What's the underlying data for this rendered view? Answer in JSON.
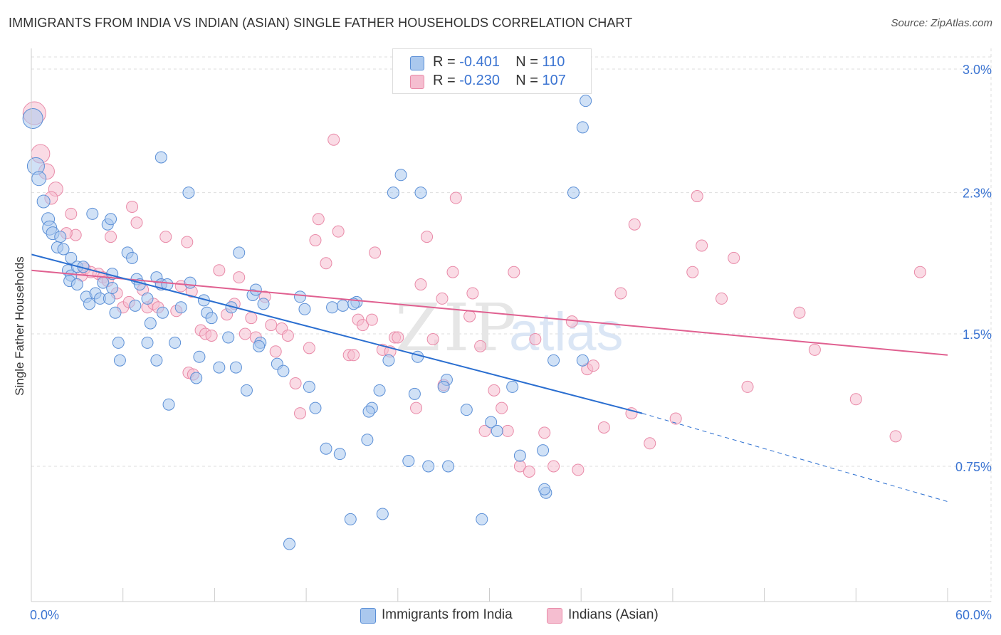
{
  "title": "IMMIGRANTS FROM INDIA VS INDIAN (ASIAN) SINGLE FATHER HOUSEHOLDS CORRELATION CHART",
  "source": "Source: ZipAtlas.com",
  "watermark": {
    "zip": "ZIP",
    "atlas": "atlas"
  },
  "colors": {
    "blue_fill": "#aac8ee",
    "blue_stroke": "#5b8fd6",
    "blue_line": "#2a6ed0",
    "pink_fill": "#f5bed0",
    "pink_stroke": "#e98aa8",
    "pink_line": "#e06090",
    "axis_text": "#3b74d2",
    "grid": "#dddddd"
  },
  "correlation": {
    "rows": [
      {
        "r_label": "R =",
        "r_value": "-0.401",
        "n_label": "N =",
        "n_value": "110",
        "color": "#aac8ee",
        "stroke": "#5b8fd6"
      },
      {
        "r_label": "R =",
        "r_value": "-0.230",
        "n_label": "N =",
        "n_value": "107",
        "color": "#f5bed0",
        "stroke": "#e98aa8"
      }
    ]
  },
  "legend": {
    "series1": "Immigrants from India",
    "series2": "Indians (Asian)"
  },
  "chart_data": {
    "type": "scatter",
    "title": "IMMIGRANTS FROM INDIA VS INDIAN (ASIAN) SINGLE FATHER HOUSEHOLDS CORRELATION CHART",
    "xlabel": "",
    "ylabel": "Single Father Households",
    "x_unit": "%",
    "xlim": [
      0,
      60
    ],
    "ylim": [
      0,
      3.1
    ],
    "x_tick_labels": [
      "0.0%",
      "60.0%"
    ],
    "y_ticks": [
      0.75,
      1.5,
      2.3,
      3.0
    ],
    "y_tick_labels": [
      "0.75%",
      "1.5%",
      "2.3%",
      "3.0%"
    ],
    "grid": true,
    "legend_position": "bottom-center",
    "series": [
      {
        "name": "Immigrants from India",
        "color": "#aac8ee",
        "regression": {
          "x0": 0,
          "y0": 1.95,
          "x1": 40,
          "y1": 1.05,
          "dashed_to_x": 60,
          "dashed_to_y": 0.55
        },
        "points": [
          [
            0.1,
            2.72,
            14
          ],
          [
            0.3,
            2.45,
            12
          ],
          [
            0.5,
            2.38,
            10
          ],
          [
            0.8,
            2.25,
            9
          ],
          [
            1.1,
            2.15,
            9
          ],
          [
            1.2,
            2.1,
            10
          ],
          [
            1.4,
            2.07,
            9
          ],
          [
            1.9,
            2.05,
            8
          ],
          [
            1.7,
            1.99,
            8
          ],
          [
            2.1,
            1.98,
            8
          ],
          [
            2.6,
            1.93,
            8
          ],
          [
            2.4,
            1.86,
            8
          ],
          [
            2.6,
            1.83,
            8
          ],
          [
            3.0,
            1.88,
            8
          ],
          [
            3.4,
            1.88,
            8
          ],
          [
            2.5,
            1.8,
            8
          ],
          [
            3.6,
            1.71,
            8
          ],
          [
            3.8,
            1.67,
            8
          ],
          [
            4.2,
            1.73,
            8
          ],
          [
            4.5,
            1.7,
            8
          ],
          [
            4.7,
            1.79,
            8
          ],
          [
            5.1,
            1.7,
            8
          ],
          [
            5.3,
            1.76,
            8
          ],
          [
            5.5,
            1.62,
            8
          ],
          [
            4.0,
            2.18,
            8
          ],
          [
            5.0,
            2.12,
            8
          ],
          [
            5.2,
            2.15,
            8
          ],
          [
            6.3,
            1.96,
            8
          ],
          [
            6.6,
            1.93,
            8
          ],
          [
            6.9,
            1.81,
            8
          ],
          [
            7.1,
            1.78,
            8
          ],
          [
            6.8,
            1.66,
            8
          ],
          [
            7.6,
            1.7,
            8
          ],
          [
            8.2,
            1.82,
            8
          ],
          [
            7.8,
            1.56,
            8
          ],
          [
            8.5,
            1.78,
            8
          ],
          [
            8.6,
            1.62,
            8
          ],
          [
            8.9,
            1.78,
            8
          ],
          [
            9.8,
            1.65,
            8
          ],
          [
            10.4,
            1.79,
            8
          ],
          [
            5.7,
            1.45,
            8
          ],
          [
            7.6,
            1.45,
            8
          ],
          [
            5.8,
            1.35,
            8
          ],
          [
            8.2,
            1.35,
            8
          ],
          [
            9.4,
            1.45,
            8
          ],
          [
            11.0,
            1.37,
            8
          ],
          [
            10.8,
            1.25,
            8
          ],
          [
            11.3,
            1.69,
            8
          ],
          [
            11.5,
            1.62,
            8
          ],
          [
            11.8,
            1.59,
            8
          ],
          [
            12.3,
            1.31,
            8
          ],
          [
            13.4,
            1.31,
            8
          ],
          [
            13.1,
            1.65,
            8
          ],
          [
            13.6,
            1.96,
            8
          ],
          [
            14.1,
            1.18,
            8
          ],
          [
            14.5,
            1.72,
            8
          ],
          [
            14.7,
            1.75,
            8
          ],
          [
            15.2,
            1.67,
            8
          ],
          [
            15.0,
            1.45,
            8
          ],
          [
            14.9,
            1.43,
            8
          ],
          [
            16.1,
            1.33,
            8
          ],
          [
            16.5,
            1.29,
            8
          ],
          [
            17.6,
            1.71,
            8
          ],
          [
            17.9,
            1.64,
            8
          ],
          [
            18.2,
            1.2,
            8
          ],
          [
            18.6,
            1.08,
            8
          ],
          [
            19.3,
            0.85,
            8
          ],
          [
            19.7,
            1.65,
            8
          ],
          [
            20.2,
            0.82,
            8
          ],
          [
            20.4,
            1.66,
            8
          ],
          [
            21.3,
            1.68,
            8
          ],
          [
            21.1,
            1.67,
            8
          ],
          [
            22.3,
            1.08,
            8
          ],
          [
            22.1,
            1.06,
            8
          ],
          [
            22.8,
            1.18,
            8
          ],
          [
            23.0,
            0.48,
            8
          ],
          [
            23.7,
            2.3,
            8
          ],
          [
            23.4,
            1.35,
            8
          ],
          [
            24.2,
            2.4,
            8
          ],
          [
            25.3,
            1.37,
            8
          ],
          [
            25.1,
            1.16,
            8
          ],
          [
            25.5,
            2.3,
            8
          ],
          [
            27.2,
            1.24,
            8
          ],
          [
            27.0,
            1.2,
            8
          ],
          [
            28.5,
            1.07,
            8
          ],
          [
            30.1,
            1.0,
            8
          ],
          [
            30.5,
            0.95,
            8
          ],
          [
            31.5,
            1.2,
            8
          ],
          [
            32.0,
            0.81,
            8
          ],
          [
            33.5,
            0.84,
            8
          ],
          [
            34.2,
            1.35,
            8
          ],
          [
            36.1,
            1.35,
            8
          ],
          [
            36.1,
            2.67,
            8
          ],
          [
            36.3,
            2.82,
            8
          ],
          [
            33.7,
            0.6,
            8
          ],
          [
            33.6,
            0.62,
            8
          ],
          [
            35.5,
            2.3,
            8
          ],
          [
            26.0,
            0.75,
            8
          ],
          [
            27.3,
            0.75,
            8
          ],
          [
            24.7,
            0.78,
            8
          ],
          [
            22.0,
            0.9,
            8
          ],
          [
            9.0,
            1.1,
            8
          ],
          [
            12.9,
            1.48,
            8
          ],
          [
            10.3,
            2.3,
            8
          ],
          [
            8.5,
            2.5,
            8
          ],
          [
            5.3,
            1.84,
            8
          ],
          [
            3.0,
            1.78,
            8
          ],
          [
            16.9,
            0.31,
            8
          ],
          [
            29.5,
            0.45,
            8
          ],
          [
            20.9,
            0.45,
            8
          ]
        ]
      },
      {
        "name": "Indians (Asian)",
        "color": "#f5bed0",
        "regression": {
          "x0": 0,
          "y0": 1.86,
          "x1": 60,
          "y1": 1.38
        },
        "points": [
          [
            0.2,
            2.75,
            16
          ],
          [
            0.6,
            2.52,
            13
          ],
          [
            1.0,
            2.42,
            11
          ],
          [
            1.6,
            2.32,
            10
          ],
          [
            1.3,
            2.27,
            9
          ],
          [
            2.6,
            2.18,
            8
          ],
          [
            2.9,
            2.06,
            8
          ],
          [
            2.3,
            2.07,
            8
          ],
          [
            3.3,
            1.83,
            8
          ],
          [
            3.5,
            1.87,
            8
          ],
          [
            3.9,
            1.85,
            8
          ],
          [
            4.4,
            1.84,
            8
          ],
          [
            4.7,
            1.82,
            8
          ],
          [
            5.0,
            1.8,
            8
          ],
          [
            5.2,
            2.05,
            8
          ],
          [
            5.6,
            1.73,
            8
          ],
          [
            6.0,
            1.65,
            8
          ],
          [
            6.4,
            1.68,
            8
          ],
          [
            6.6,
            2.22,
            8
          ],
          [
            6.9,
            2.13,
            8
          ],
          [
            7.3,
            1.75,
            8
          ],
          [
            7.6,
            1.65,
            8
          ],
          [
            8.0,
            1.67,
            8
          ],
          [
            8.3,
            1.65,
            8
          ],
          [
            8.5,
            1.78,
            8
          ],
          [
            8.8,
            2.05,
            8
          ],
          [
            9.5,
            1.63,
            8
          ],
          [
            9.8,
            1.77,
            8
          ],
          [
            10.2,
            2.02,
            8
          ],
          [
            10.5,
            1.74,
            8
          ],
          [
            10.3,
            1.28,
            8
          ],
          [
            10.6,
            1.27,
            8
          ],
          [
            11.1,
            1.52,
            8
          ],
          [
            11.4,
            1.5,
            8
          ],
          [
            11.8,
            1.49,
            8
          ],
          [
            12.3,
            1.86,
            8
          ],
          [
            12.8,
            1.61,
            8
          ],
          [
            13.3,
            1.67,
            8
          ],
          [
            13.6,
            1.82,
            8
          ],
          [
            14.0,
            1.5,
            8
          ],
          [
            14.4,
            1.59,
            8
          ],
          [
            14.7,
            1.48,
            8
          ],
          [
            15.3,
            1.71,
            8
          ],
          [
            15.7,
            1.55,
            8
          ],
          [
            16.0,
            1.4,
            8
          ],
          [
            16.4,
            1.53,
            8
          ],
          [
            16.8,
            1.49,
            8
          ],
          [
            17.3,
            1.22,
            8
          ],
          [
            17.6,
            1.05,
            8
          ],
          [
            18.2,
            1.42,
            8
          ],
          [
            18.6,
            2.03,
            8
          ],
          [
            18.8,
            2.15,
            8
          ],
          [
            19.3,
            1.9,
            8
          ],
          [
            19.8,
            2.6,
            8
          ],
          [
            20.1,
            2.08,
            8
          ],
          [
            20.8,
            1.38,
            8
          ],
          [
            21.1,
            1.38,
            8
          ],
          [
            21.4,
            1.58,
            8
          ],
          [
            21.7,
            1.55,
            8
          ],
          [
            22.3,
            1.58,
            8
          ],
          [
            22.5,
            1.96,
            8
          ],
          [
            23.0,
            1.41,
            8
          ],
          [
            23.5,
            1.4,
            8
          ],
          [
            23.8,
            1.48,
            8
          ],
          [
            24.0,
            1.48,
            8
          ],
          [
            25.2,
            1.08,
            8
          ],
          [
            25.5,
            1.78,
            8
          ],
          [
            25.9,
            2.05,
            8
          ],
          [
            26.3,
            1.47,
            8
          ],
          [
            26.9,
            1.7,
            8
          ],
          [
            27.0,
            1.21,
            8
          ],
          [
            27.6,
            1.85,
            8
          ],
          [
            27.8,
            2.27,
            8
          ],
          [
            28.7,
            1.6,
            8
          ],
          [
            28.9,
            1.73,
            8
          ],
          [
            29.4,
            1.43,
            8
          ],
          [
            29.7,
            0.95,
            8
          ],
          [
            30.3,
            1.18,
            8
          ],
          [
            30.8,
            1.08,
            8
          ],
          [
            31.2,
            0.95,
            8
          ],
          [
            31.6,
            1.85,
            8
          ],
          [
            32.0,
            0.75,
            8
          ],
          [
            32.6,
            0.72,
            8
          ],
          [
            33.0,
            1.47,
            8
          ],
          [
            33.6,
            0.94,
            8
          ],
          [
            34.2,
            0.75,
            8
          ],
          [
            35.4,
            1.57,
            8
          ],
          [
            35.8,
            0.73,
            8
          ],
          [
            36.4,
            1.3,
            8
          ],
          [
            36.8,
            1.32,
            8
          ],
          [
            37.5,
            0.97,
            8
          ],
          [
            38.6,
            1.73,
            8
          ],
          [
            39.3,
            1.05,
            8
          ],
          [
            39.5,
            2.12,
            8
          ],
          [
            40.5,
            0.88,
            8
          ],
          [
            42.2,
            1.02,
            8
          ],
          [
            43.3,
            1.85,
            8
          ],
          [
            43.6,
            2.28,
            8
          ],
          [
            43.9,
            2.0,
            8
          ],
          [
            45.2,
            1.7,
            8
          ],
          [
            46.0,
            1.93,
            8
          ],
          [
            46.9,
            1.2,
            8
          ],
          [
            50.3,
            1.62,
            8
          ],
          [
            51.3,
            1.41,
            8
          ],
          [
            54.0,
            1.13,
            8
          ],
          [
            56.6,
            0.92,
            8
          ],
          [
            58.2,
            1.85,
            8
          ]
        ]
      }
    ]
  }
}
